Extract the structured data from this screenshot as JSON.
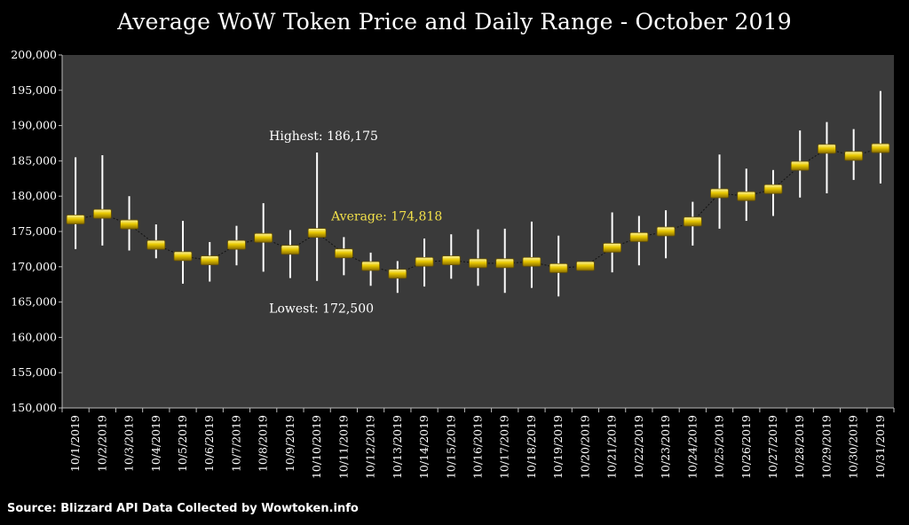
{
  "title": "Average WoW Token Price and Daily Range - October 2019",
  "source": "Source: Blizzard API Data Collected by Wowtoken.info",
  "colors": {
    "plot_bg": "#3a3a3a",
    "marker": "#e8c800",
    "range_line": "#ffffff",
    "average_text": "#f2e04a",
    "connector": "#111111"
  },
  "annotations": {
    "highest": "Highest: 186,175",
    "average": "Average: 174,818",
    "lowest": "Lowest: 172,500"
  },
  "chart_data": {
    "type": "line",
    "title": "Average WoW Token Price and Daily Range - October 2019",
    "xlabel": "",
    "ylabel": "",
    "ylim": [
      150000,
      200000
    ],
    "ytick_step": 5000,
    "ytick_labels": [
      "150,000",
      "155,000",
      "160,000",
      "165,000",
      "170,000",
      "175,000",
      "180,000",
      "185,000",
      "190,000",
      "195,000",
      "200,000"
    ],
    "grid": false,
    "categories": [
      "10/1/2019",
      "10/2/2019",
      "10/3/2019",
      "10/4/2019",
      "10/5/2019",
      "10/6/2019",
      "10/7/2019",
      "10/8/2019",
      "10/9/2019",
      "10/10/2019",
      "10/11/2019",
      "10/12/2019",
      "10/13/2019",
      "10/14/2019",
      "10/15/2019",
      "10/16/2019",
      "10/17/2019",
      "10/18/2019",
      "10/19/2019",
      "10/20/2019",
      "10/21/2019",
      "10/22/2019",
      "10/23/2019",
      "10/24/2019",
      "10/25/2019",
      "10/26/2019",
      "10/27/2019",
      "10/28/2019",
      "10/29/2019",
      "10/30/2019",
      "10/31/2019"
    ],
    "average": [
      176700,
      177500,
      176000,
      173100,
      171500,
      170900,
      173100,
      174100,
      172400,
      174800,
      171900,
      170100,
      169000,
      170700,
      170900,
      170500,
      170500,
      170700,
      169800,
      170100,
      172700,
      174200,
      175000,
      176400,
      180400,
      180000,
      181000,
      184300,
      186700,
      185700,
      186800
    ],
    "high": [
      185500,
      185800,
      180000,
      176000,
      176500,
      173500,
      175800,
      179000,
      175200,
      186175,
      174200,
      172000,
      170800,
      174000,
      174600,
      175300,
      175400,
      176400,
      174400,
      170600,
      177700,
      177200,
      178000,
      179200,
      185900,
      183900,
      183700,
      189300,
      190500,
      189500,
      194900
    ],
    "low": [
      172500,
      173000,
      172300,
      171200,
      167600,
      167900,
      170200,
      169300,
      168400,
      168000,
      168800,
      167300,
      166300,
      167200,
      168300,
      167300,
      166300,
      167000,
      165800,
      169600,
      169200,
      170200,
      171200,
      173000,
      175400,
      176500,
      177200,
      179800,
      180400,
      182300,
      181800
    ]
  }
}
